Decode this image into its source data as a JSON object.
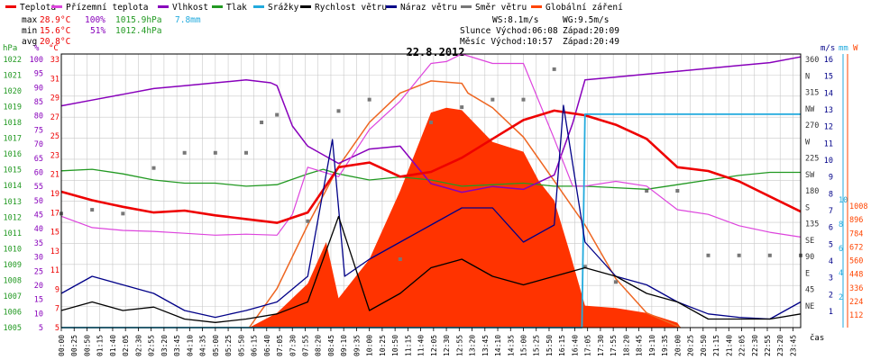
{
  "title": "22.8.2012",
  "legend": [
    {
      "label": "Teplota",
      "color": "#ee0000"
    },
    {
      "label": "Přízemní teplota",
      "color": "#dd44dd"
    },
    {
      "label": "Vlhkost",
      "color": "#8800bb"
    },
    {
      "label": "Tlak",
      "color": "#229922"
    },
    {
      "label": "Srážky",
      "color": "#22aadd"
    },
    {
      "label": "Rychlost větru",
      "color": "#000000"
    },
    {
      "label": "Náraz větru",
      "color": "#000088"
    },
    {
      "label": "Směr větru",
      "color": "#777777"
    },
    {
      "label": "Globální záření",
      "color": "#ff4400"
    }
  ],
  "stats": {
    "max_label": "max",
    "max_temp": "28.9°C",
    "max_hum": "100%",
    "max_press": "1015.9hPa",
    "max_rain": "7.8mm",
    "min_label": "min",
    "min_temp": "15.6°C",
    "min_hum": "51%",
    "min_press": "1012.4hPa",
    "avg_label": "avg",
    "avg_temp": "20.8°C"
  },
  "wind_info": {
    "ws": "WS:8.1m/s",
    "wg": "WG:9.5m/s",
    "sun_rise": "Slunce Východ:06:08",
    "sun_set": "Západ:20:09",
    "moon_rise": "Měsíc  Východ:10:57",
    "moon_set": "Západ:20:49"
  },
  "axis_units": {
    "hpa": "hPa",
    "pct": "%",
    "degc": "°C",
    "ms": "m/s",
    "mm": "mm",
    "w": "W",
    "time": "čas"
  },
  "colors": {
    "temp": "#ee0000",
    "ground": "#dd44dd",
    "hum": "#8800bb",
    "press": "#229922",
    "rain": "#22aadd",
    "wind": "#000000",
    "gust": "#000088",
    "dir": "#777777",
    "solar_fill": "#ff3300",
    "solar_clear": "#ee6622",
    "grid": "#c8c8c8"
  },
  "chart_data": {
    "type": "line",
    "x_ticks": [
      "00:00",
      "00:25",
      "00:50",
      "01:15",
      "01:40",
      "02:05",
      "02:30",
      "02:55",
      "03:20",
      "03:45",
      "04:10",
      "04:35",
      "05:00",
      "05:25",
      "05:50",
      "06:15",
      "06:40",
      "07:05",
      "07:30",
      "07:55",
      "08:20",
      "08:45",
      "09:10",
      "09:35",
      "10:00",
      "10:25",
      "10:50",
      "11:15",
      "11:40",
      "12:05",
      "12:30",
      "12:55",
      "13:20",
      "13:45",
      "14:10",
      "14:35",
      "15:00",
      "15:25",
      "15:50",
      "16:15",
      "16:40",
      "17:05",
      "17:30",
      "17:55",
      "18:20",
      "18:45",
      "19:10",
      "19:35",
      "20:00",
      "20:25",
      "20:50",
      "21:15",
      "21:40",
      "22:05",
      "22:30",
      "22:55",
      "23:20",
      "23:45"
    ],
    "axes": {
      "pressure_hpa": {
        "ticks": [
          "1022",
          "1021",
          "1020",
          "1019",
          "1018",
          "1017",
          "1016",
          "1015",
          "1014",
          "1013",
          "1012",
          "1011",
          "1010",
          "1009",
          "1008",
          "1007",
          "1006",
          "1005"
        ],
        "range": [
          1005,
          1022.8
        ]
      },
      "humidity_pct": {
        "ticks": [
          "100",
          "95",
          "90",
          "85",
          "80",
          "75",
          "70",
          "65",
          "60",
          "55",
          "50",
          "45",
          "40",
          "35",
          "30",
          "25",
          "20",
          "15",
          "10",
          "5"
        ],
        "range": [
          5,
          100
        ]
      },
      "temperature_c": {
        "ticks": [
          "33",
          "31",
          "29",
          "27",
          "25",
          "23",
          "21",
          "19",
          "17",
          "15",
          "13",
          "11",
          "9",
          "7",
          "5"
        ],
        "range": [
          5,
          34
        ]
      },
      "wind_dir": {
        "ticks": [
          "360",
          "N",
          "315",
          "NW",
          "270",
          "W",
          "225",
          "SW",
          "180",
          "S",
          "135",
          "SE",
          "90",
          "E",
          "45",
          "NE"
        ],
        "range": [
          0,
          360
        ]
      },
      "wind_ms": {
        "ticks": [
          "16",
          "15",
          "14",
          "13",
          "12",
          "11",
          "10",
          "9",
          "8",
          "7",
          "6",
          "5",
          "4",
          "3",
          "2",
          "1"
        ],
        "range": [
          0,
          16
        ]
      },
      "rain_mm": {
        "ticks": [
          "10",
          "8",
          "6",
          "4",
          "2"
        ],
        "range": [
          0,
          10
        ]
      },
      "solar_w": {
        "ticks": [
          "1008",
          "896",
          "784",
          "672",
          "560",
          "448",
          "336",
          "224",
          "112"
        ],
        "range": [
          0,
          1120
        ]
      }
    },
    "series": [
      {
        "name": "Teplota",
        "unit": "°C",
        "axis": "temperature_c",
        "x": [
          0,
          1,
          2,
          3,
          4,
          5,
          6,
          7,
          8,
          9,
          10,
          11,
          12,
          13,
          14,
          15,
          16,
          17,
          18,
          19,
          20,
          21,
          22,
          23,
          24
        ],
        "y": [
          19.4,
          18.5,
          17.8,
          17.2,
          17.4,
          16.9,
          16.5,
          16.1,
          17.2,
          22,
          22.5,
          21,
          21.5,
          23,
          25,
          27,
          28,
          27.5,
          26.5,
          25,
          22,
          21.6,
          20.5,
          18.9,
          17.3
        ]
      },
      {
        "name": "Přízemní teplota",
        "unit": "°C",
        "axis": "temperature_c",
        "x": [
          0,
          1,
          2,
          3,
          4,
          5,
          6,
          7,
          7.5,
          8,
          9,
          10,
          11,
          12,
          12.5,
          13,
          14,
          15,
          16,
          16.6,
          17,
          18,
          19,
          20,
          21,
          22,
          23,
          24
        ],
        "y": [
          16.8,
          15.6,
          15.3,
          15.2,
          15,
          14.8,
          14.9,
          14.8,
          17,
          22,
          21,
          26,
          29,
          33,
          33.2,
          34,
          33,
          33,
          25,
          20,
          20,
          20.5,
          20,
          17.5,
          17,
          15.8,
          15.1,
          14.6
        ]
      },
      {
        "name": "Vlhkost",
        "unit": "%",
        "axis": "humidity_pct",
        "x": [
          0,
          1,
          2,
          3,
          4,
          5,
          6,
          6.8,
          7,
          7.5,
          8,
          9,
          10,
          11,
          12,
          13,
          14,
          15,
          16,
          16.6,
          17,
          18,
          19,
          20,
          21,
          22,
          23,
          24
        ],
        "y": [
          82,
          84,
          86,
          88,
          89,
          90,
          91,
          90,
          89,
          75,
          68,
          62,
          67,
          68,
          55,
          52,
          54,
          53,
          58,
          76,
          91,
          92,
          93,
          94,
          95,
          96,
          97,
          99
        ]
      },
      {
        "name": "Tlak",
        "unit": "hPa",
        "axis": "pressure_hpa",
        "x": [
          0,
          1,
          2,
          3,
          4,
          5,
          6,
          7,
          8,
          8.5,
          9,
          10,
          11,
          12,
          13,
          14,
          15,
          16,
          17,
          18,
          19,
          20,
          21,
          22,
          23,
          24
        ],
        "y": [
          1015.2,
          1015.3,
          1015,
          1014.6,
          1014.4,
          1014.4,
          1014.2,
          1014.3,
          1015,
          1015.3,
          1015,
          1014.6,
          1014.8,
          1014.6,
          1014.2,
          1014.3,
          1014.4,
          1014.2,
          1014.2,
          1014.1,
          1014,
          1014.3,
          1014.6,
          1014.9,
          1015.1,
          1015.1
        ]
      },
      {
        "name": "Srážky",
        "unit": "mm",
        "axis": "rain_mm",
        "x": [
          0,
          16.9,
          17.0,
          24
        ],
        "y": [
          0,
          0,
          7.8,
          7.8
        ]
      },
      {
        "name": "Rychlost větru",
        "unit": "m/s",
        "axis": "wind_ms",
        "x": [
          0,
          1,
          2,
          3,
          4,
          5,
          6,
          7,
          8,
          9,
          10,
          11,
          12,
          13,
          14,
          15,
          16,
          17,
          18,
          19,
          20,
          21,
          22,
          23,
          24
        ],
        "y": [
          1,
          1.5,
          1,
          1.2,
          0.5,
          0.3,
          0.5,
          0.8,
          1.5,
          6.5,
          1,
          2,
          3.5,
          4,
          3,
          2.5,
          3,
          3.5,
          3,
          2,
          1.5,
          0.5,
          0.5,
          0.5,
          0.8
        ]
      },
      {
        "name": "Náraz větru",
        "unit": "m/s",
        "axis": "wind_ms",
        "x": [
          0,
          1,
          2,
          3,
          4,
          5,
          6,
          7,
          8,
          8.8,
          9.2,
          10,
          11,
          12,
          13,
          14,
          15,
          16,
          16.3,
          17,
          18,
          19,
          20,
          21,
          22,
          23,
          24
        ],
        "y": [
          2,
          3,
          2.5,
          2,
          1,
          0.6,
          1,
          1.5,
          3,
          11,
          3,
          4,
          5,
          6,
          7,
          7,
          5,
          6,
          13,
          5,
          3,
          2.5,
          1.5,
          0.8,
          0.6,
          0.5,
          1.5
        ]
      },
      {
        "name": "Směr větru",
        "unit": "°",
        "axis": "wind_dir",
        "x": [
          0,
          1,
          2,
          3,
          4,
          5,
          6,
          6.5,
          7,
          8,
          9,
          10,
          11,
          12,
          13,
          14,
          15,
          16,
          17,
          18,
          19,
          20,
          21,
          22,
          23,
          24
        ],
        "y": [
          150,
          155,
          150,
          210,
          230,
          230,
          230,
          270,
          280,
          140,
          285,
          300,
          90,
          270,
          290,
          300,
          300,
          340,
          80,
          60,
          180,
          180,
          95,
          95,
          95,
          95
        ]
      },
      {
        "name": "Globální záření",
        "unit": "W",
        "axis": "solar_w",
        "x": [
          0,
          6.1,
          7,
          8,
          8.6,
          9,
          10,
          11,
          12,
          12.5,
          13,
          14,
          15,
          15.5,
          16,
          16.5,
          17,
          18,
          19,
          20,
          20.1,
          24
        ],
        "y": [
          0,
          0,
          60,
          180,
          350,
          120,
          280,
          560,
          880,
          900,
          890,
          760,
          720,
          600,
          520,
          310,
          90,
          80,
          60,
          20,
          0,
          0
        ]
      },
      {
        "name": "Globální záření (teoretické)",
        "unit": "W",
        "axis": "solar_w",
        "x": [
          6.1,
          7,
          8,
          9,
          10,
          11,
          12,
          13,
          13.2,
          14,
          15,
          16,
          17,
          18,
          19,
          20.1
        ],
        "y": [
          0,
          160,
          420,
          660,
          840,
          960,
          1010,
          1000,
          960,
          900,
          780,
          600,
          420,
          200,
          60,
          0
        ]
      }
    ]
  }
}
